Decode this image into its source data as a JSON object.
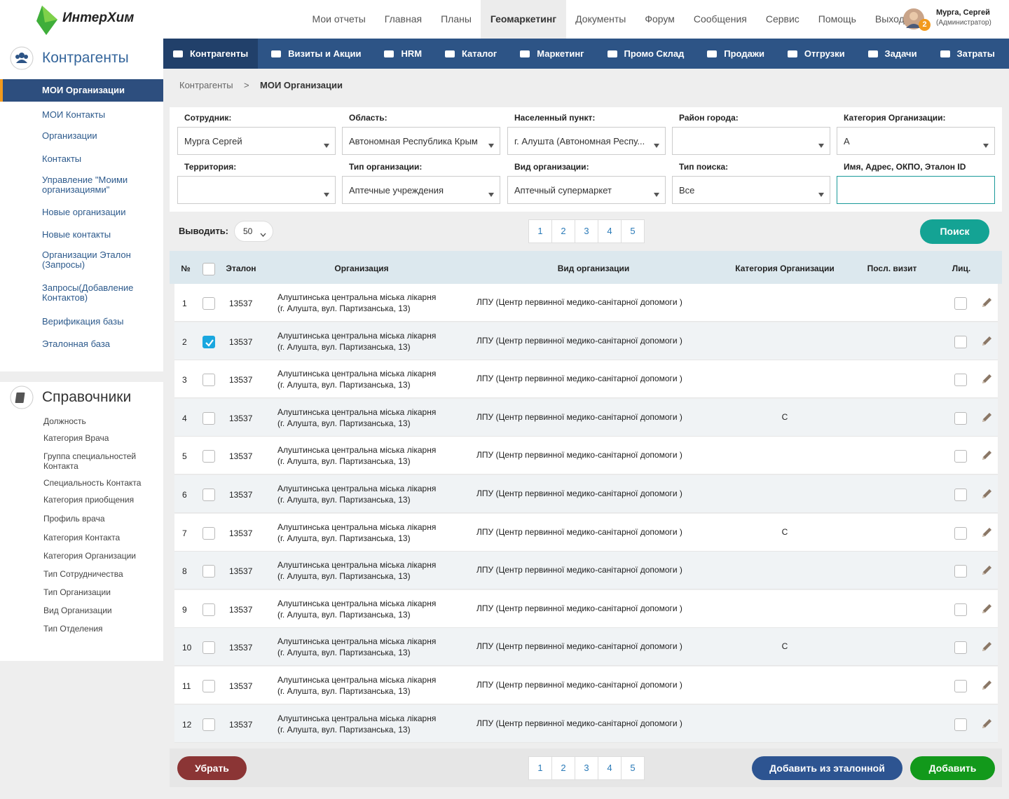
{
  "header": {
    "logo": "ИнтерХим",
    "nav": [
      "Мои отчеты",
      "Главная",
      "Планы",
      "Геомаркетинг",
      "Документы",
      "Форум",
      "Сообщения",
      "Сервис",
      "Помощь",
      "Выход"
    ],
    "active_nav": 3,
    "user": {
      "name": "Мурга, Сергей",
      "role": "(Администратор)",
      "badge": 2
    }
  },
  "sidebar": {
    "sections": [
      {
        "title": "Контрагенты",
        "active": 0,
        "items": [
          "МОИ Организации",
          "МОИ Контакты",
          "Организации",
          "Контакты",
          "Управление \"Моими организациями\"",
          "Новые организации",
          "Новые контакты",
          "Организации Эталон (Запросы)",
          "Запросы(Добавление Контактов)",
          "Верификация базы",
          "Эталонная база"
        ]
      },
      {
        "title": "Справочники",
        "items": [
          "Должность",
          "Категория Врача",
          "Группа специальностей Контакта",
          "Специальность Контакта",
          "Категория приобщения",
          "Профиль врача",
          "Категория Контакта",
          "Категория Организации",
          "Тип Сотрудничества",
          "Тип Организации",
          "Вид Организации",
          "Тип Отделения"
        ]
      }
    ]
  },
  "tabs": {
    "active": 0,
    "items": [
      "Контрагенты",
      "Визиты и Акции",
      "HRM",
      "Каталог",
      "Маркетинг",
      "Промо Склад",
      "Продажи",
      "Отгрузки",
      "Задачи",
      "Затраты"
    ]
  },
  "breadcrumb": {
    "items": [
      "Контрагенты",
      "МОИ Организации"
    ],
    "separator": ">"
  },
  "filters": [
    {
      "label": "Сотрудник:",
      "value": "Мурга Сергей"
    },
    {
      "label": "Область:",
      "value": "Автономная Республика Крым"
    },
    {
      "label": "Населенный пункт:",
      "value": "г. Алушта (Автономная Респу..."
    },
    {
      "label": "Район города:"
    },
    {
      "label": "Категория Организации:",
      "value": "А"
    },
    {
      "label": "Территория:"
    },
    {
      "label": "Тип организации:",
      "value": "Аптечные учреждения"
    },
    {
      "label": "Вид организации:",
      "value": "Аптечный супермаркет"
    },
    {
      "label": "Тип поиска:",
      "value": "Все"
    },
    {
      "label": "Имя, Адрес, ОКПО, Эталон ID",
      "input": true
    }
  ],
  "toolbar": {
    "page_size_label": "Выводить:",
    "page_size": 50,
    "pages": [
      1,
      2,
      3,
      4,
      5
    ],
    "search": "Поиск"
  },
  "table": {
    "headers": [
      "№",
      "Эталон",
      "Организация",
      "Вид организации",
      "Категория Организации",
      "Посл. визит",
      "Лиц."
    ],
    "rows": [
      {
        "n": 1,
        "id": 13537,
        "name": "Алуштинська центральна міська лікарня",
        "address": "(г. Алушта, вул. Партизанська, 13)",
        "type": "ЛПУ (Центр первинної медико-санітарної допомоги )",
        "checked": false
      },
      {
        "n": 2,
        "id": 13537,
        "name": "Алуштинська центральна міська лікарня",
        "address": "(г. Алушта, вул. Партизанська, 13)",
        "type": "ЛПУ (Центр первинної медико-санітарної допомоги )",
        "checked": true
      },
      {
        "n": 3,
        "id": 13537,
        "name": "Алуштинська центральна міська лікарня",
        "address": "(г. Алушта, вул. Партизанська, 13)",
        "type": "ЛПУ (Центр первинної медико-санітарної допомоги )",
        "checked": false
      },
      {
        "n": 4,
        "id": 13537,
        "name": "Алуштинська центральна міська лікарня",
        "address": "(г. Алушта, вул. Партизанська, 13)",
        "type": "ЛПУ (Центр первинної медико-санітарної допомоги )",
        "category": "С",
        "checked": false
      },
      {
        "n": 5,
        "id": 13537,
        "name": "Алуштинська центральна міська лікарня",
        "address": "(г. Алушта, вул. Партизанська, 13)",
        "type": "ЛПУ (Центр первинної медико-санітарної допомоги )",
        "checked": false
      },
      {
        "n": 6,
        "id": 13537,
        "name": "Алуштинська центральна міська лікарня",
        "address": "(г. Алушта, вул. Партизанська, 13)",
        "type": "ЛПУ (Центр первинної медико-санітарної допомоги )",
        "checked": false
      },
      {
        "n": 7,
        "id": 13537,
        "name": "Алуштинська центральна міська лікарня",
        "address": "(г. Алушта, вул. Партизанська, 13)",
        "type": "ЛПУ (Центр первинної медико-санітарної допомоги )",
        "category": "С",
        "checked": false
      },
      {
        "n": 8,
        "id": 13537,
        "name": "Алуштинська центральна міська лікарня",
        "address": "(г. Алушта, вул. Партизанська, 13)",
        "type": "ЛПУ (Центр первинної медико-санітарної допомоги )",
        "checked": false
      },
      {
        "n": 9,
        "id": 13537,
        "name": "Алуштинська центральна міська лікарня",
        "address": "(г. Алушта, вул. Партизанська, 13)",
        "type": "ЛПУ (Центр первинної медико-санітарної допомоги )",
        "checked": false
      },
      {
        "n": 10,
        "id": 13537,
        "name": "Алуштинська центральна міська лікарня",
        "address": "(г. Алушта, вул. Партизанська, 13)",
        "type": "ЛПУ (Центр первинної медико-санітарної допомоги )",
        "category": "С",
        "checked": false
      },
      {
        "n": 11,
        "id": 13537,
        "name": "Алуштинська центральна міська лікарня",
        "address": "(г. Алушта, вул. Партизанська, 13)",
        "type": "ЛПУ (Центр первинної медико-санітарної допомоги )",
        "checked": false
      },
      {
        "n": 12,
        "id": 13537,
        "name": "Алуштинська центральна міська лікарня",
        "address": "(г. Алушта, вул. Партизанська, 13)",
        "type": "ЛПУ (Центр первинної медико-санітарної допомоги )",
        "checked": false
      }
    ]
  },
  "footer": {
    "remove": "Убрать",
    "add_from_reference": "Добавить из эталонной",
    "add": "Добавить"
  }
}
